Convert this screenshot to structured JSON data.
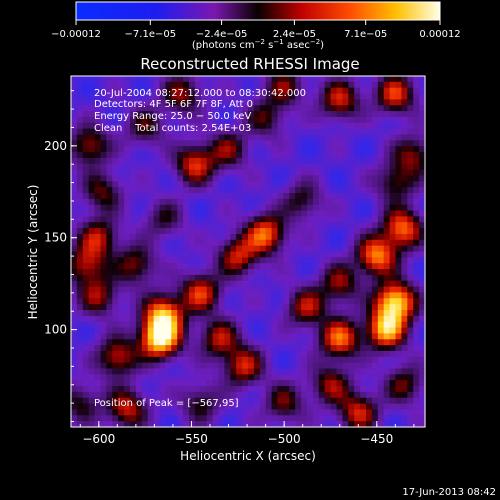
{
  "chart_data": {
    "type": "heatmap",
    "title": "Reconstructed RHESSI Image",
    "xlabel": "Heliocentric X (arcsec)",
    "ylabel": "Heliocentric Y (arcsec)",
    "xlim": [
      -615,
      -424
    ],
    "ylim": [
      47,
      238
    ],
    "x_ticks": [
      -600,
      -550,
      -500,
      -450
    ],
    "x_tick_labels": [
      "−600",
      "−550",
      "−500",
      "−450"
    ],
    "y_ticks": [
      100,
      150,
      200
    ],
    "y_tick_labels": [
      "100",
      "150",
      "200"
    ],
    "colorbar": {
      "range": [
        -0.00012,
        0.00012
      ],
      "tick_values": [
        -0.00012,
        -7.1e-05,
        -2.4e-05,
        2.4e-05,
        7.1e-05,
        0.00012
      ],
      "tick_labels": [
        "−0.00012",
        "−7.1e−05",
        "−2.4e−05",
        "2.4e−05",
        "7.1e−05",
        "0.00012"
      ],
      "units_base": "(photons cm",
      "units_sup1": "−2",
      "units_mid": " s",
      "units_sup2": "−1",
      "units_end": " asec",
      "units_sup3": "−2",
      "units_close": ")"
    },
    "annotations": {
      "time_range": "20-Jul-2004 08:27:12.000 to 08:30:42.000",
      "detectors": "Detectors: 4F 5F 6F 7F 8F, Att 0",
      "energy": "Energy Range: 25.0 − 50.0 keV",
      "clean": "Clean    Total counts: 2.54E+03",
      "peak": "Position of Peak = [−567,95]"
    },
    "peak_position": [
      -567,
      95
    ],
    "blobs": [
      {
        "x": -567,
        "y": 95,
        "amp": 1.0
      },
      {
        "x": -565,
        "y": 108,
        "amp": 0.8
      },
      {
        "x": -440,
        "y": 115,
        "amp": 0.95
      },
      {
        "x": -445,
        "y": 100,
        "amp": 0.85
      },
      {
        "x": -450,
        "y": 140,
        "amp": 0.75
      },
      {
        "x": -436,
        "y": 155,
        "amp": 0.7
      },
      {
        "x": -470,
        "y": 95,
        "amp": 0.7
      },
      {
        "x": -510,
        "y": 152,
        "amp": 0.7
      },
      {
        "x": -525,
        "y": 140,
        "amp": 0.55
      },
      {
        "x": -545,
        "y": 120,
        "amp": 0.6
      },
      {
        "x": -535,
        "y": 95,
        "amp": 0.5
      },
      {
        "x": -522,
        "y": 80,
        "amp": 0.55
      },
      {
        "x": -600,
        "y": 150,
        "amp": 0.5
      },
      {
        "x": -607,
        "y": 135,
        "amp": 0.5
      },
      {
        "x": -600,
        "y": 118,
        "amp": 0.45
      },
      {
        "x": -580,
        "y": 135,
        "amp": 0.45
      },
      {
        "x": -590,
        "y": 85,
        "amp": 0.55
      },
      {
        "x": -585,
        "y": 57,
        "amp": 0.55
      },
      {
        "x": -460,
        "y": 55,
        "amp": 0.55
      },
      {
        "x": -475,
        "y": 70,
        "amp": 0.45
      },
      {
        "x": -488,
        "y": 112,
        "amp": 0.5
      },
      {
        "x": -470,
        "y": 125,
        "amp": 0.45
      },
      {
        "x": -548,
        "y": 190,
        "amp": 0.6
      },
      {
        "x": -530,
        "y": 198,
        "amp": 0.4
      },
      {
        "x": -605,
        "y": 200,
        "amp": 0.5
      },
      {
        "x": -598,
        "y": 175,
        "amp": 0.4
      },
      {
        "x": -470,
        "y": 225,
        "amp": 0.55
      },
      {
        "x": -440,
        "y": 228,
        "amp": 0.6
      },
      {
        "x": -430,
        "y": 195,
        "amp": 0.45
      },
      {
        "x": -555,
        "y": 228,
        "amp": 0.45
      },
      {
        "x": -500,
        "y": 232,
        "amp": 0.4
      },
      {
        "x": -510,
        "y": 215,
        "amp": 0.35
      },
      {
        "x": -490,
        "y": 170,
        "amp": 0.35
      },
      {
        "x": -440,
        "y": 180,
        "amp": 0.4
      },
      {
        "x": -500,
        "y": 60,
        "amp": 0.4
      },
      {
        "x": -545,
        "y": 60,
        "amp": 0.35
      },
      {
        "x": -435,
        "y": 70,
        "amp": 0.4
      },
      {
        "x": -565,
        "y": 160,
        "amp": 0.3
      },
      {
        "x": -575,
        "y": 210,
        "amp": 0.35
      },
      {
        "x": -610,
        "y": 60,
        "amp": 0.35
      }
    ]
  },
  "footer": {
    "timestamp": "17-Jun-2013 08:42"
  }
}
